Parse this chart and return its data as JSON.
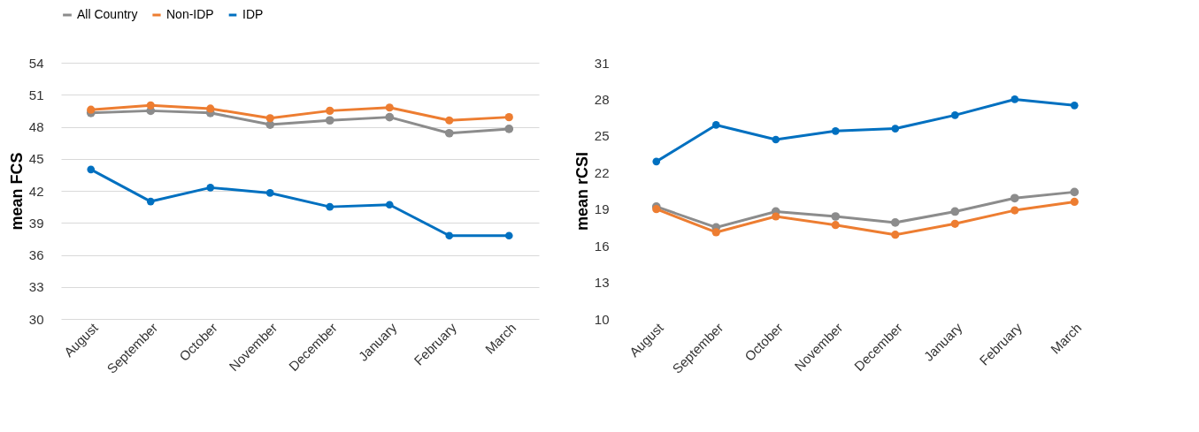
{
  "chart_data": [
    {
      "type": "line",
      "ylabel": "mean FCS",
      "categories": [
        "August",
        "September",
        "October",
        "November",
        "December",
        "January",
        "February",
        "March"
      ],
      "ylim": [
        30,
        54
      ],
      "yticks": [
        30,
        33,
        36,
        39,
        42,
        45,
        48,
        51,
        54
      ],
      "grid": "y",
      "legend": "top left",
      "marker": "circle",
      "series": [
        {
          "name": "All Country",
          "color": "#8c8c8c",
          "values": [
            49.3,
            49.5,
            49.3,
            48.2,
            48.6,
            48.9,
            47.4,
            47.8
          ]
        },
        {
          "name": "Non-IDP",
          "color": "#ed7d31",
          "values": [
            49.6,
            50.0,
            49.7,
            48.8,
            49.5,
            49.8,
            48.6,
            48.9
          ]
        },
        {
          "name": "IDP",
          "color": "#0070c0",
          "values": [
            44.0,
            41.0,
            42.3,
            41.8,
            40.5,
            40.7,
            37.8,
            37.8
          ]
        }
      ]
    },
    {
      "type": "line",
      "ylabel": "mean rCSI",
      "categories": [
        "August",
        "September",
        "October",
        "November",
        "December",
        "January",
        "February",
        "March"
      ],
      "ylim": [
        10,
        31
      ],
      "yticks": [
        10,
        13,
        16,
        19,
        22,
        25,
        28,
        31
      ],
      "marker": "circle",
      "series": [
        {
          "name": "All Country",
          "color": "#8c8c8c",
          "values": [
            19.2,
            17.5,
            18.8,
            18.4,
            17.9,
            18.8,
            19.9,
            20.4
          ]
        },
        {
          "name": "Non-IDP",
          "color": "#ed7d31",
          "values": [
            19.0,
            17.1,
            18.4,
            17.7,
            16.9,
            17.8,
            18.9,
            19.6
          ]
        },
        {
          "name": "IDP",
          "color": "#0070c0",
          "values": [
            22.9,
            25.9,
            24.7,
            25.4,
            25.6,
            26.7,
            28.0,
            27.5
          ]
        }
      ]
    }
  ]
}
